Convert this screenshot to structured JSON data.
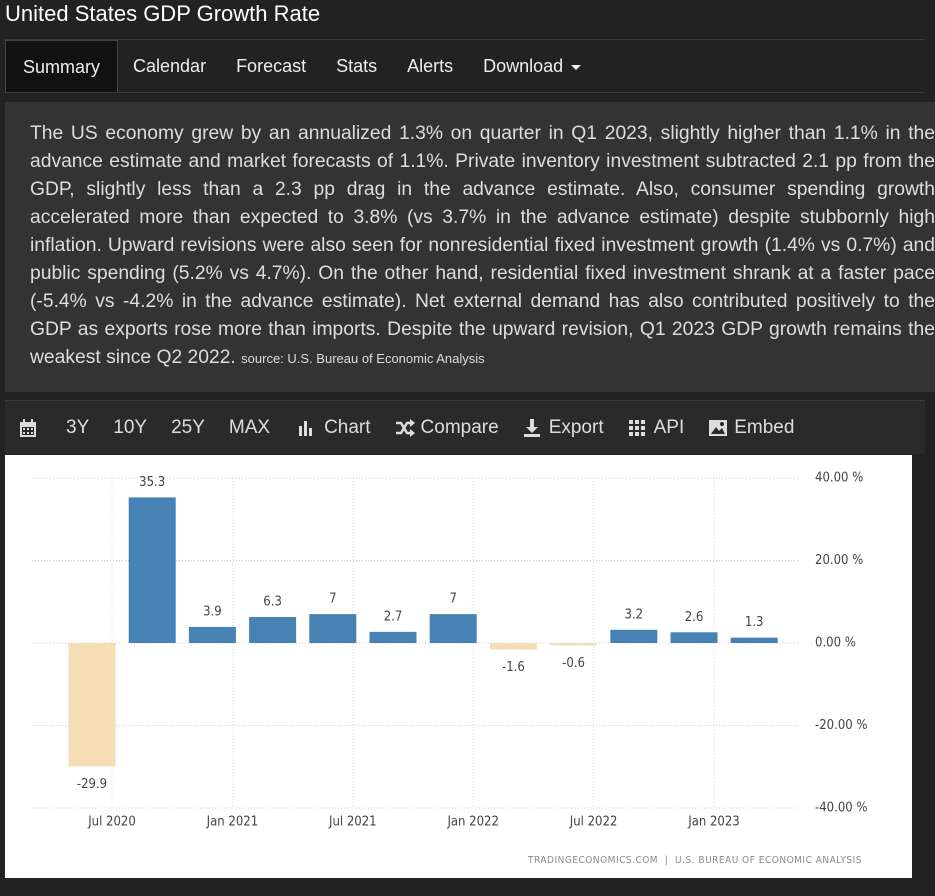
{
  "header": {
    "title": "United States GDP Growth Rate"
  },
  "nav": {
    "tabs": [
      "Summary",
      "Calendar",
      "Forecast",
      "Stats",
      "Alerts",
      "Download"
    ]
  },
  "summary": {
    "text": "The US economy grew by an annualized 1.3% on quarter in Q1 2023, slightly higher than 1.1% in the advance estimate and market forecasts of 1.1%. Private inventory investment subtracted 2.1 pp from the GDP, slightly less than a 2.3 pp drag in the advance estimate. Also, consumer spending growth accelerated more than expected to 3.8% (vs 3.7% in the advance estimate) despite stubbornly high inflation. Upward revisions were also seen for nonresidential fixed investment growth (1.4% vs 0.7%) and public spending (5.2% vs 4.7%). On the other hand, residential fixed investment shrank at a faster pace (-5.4% vs -4.2% in the advance estimate). Net external demand has also contributed positively to the GDP as exports rose more than imports. Despite the upward revision, Q1 2023 GDP growth remains the weakest since Q2 2022.",
    "source": "source: U.S. Bureau of Economic Analysis"
  },
  "toolbar": {
    "items": [
      "3Y",
      "10Y",
      "25Y",
      "MAX",
      "Chart",
      "Compare",
      "Export",
      "API",
      "Embed"
    ]
  },
  "chart_data": {
    "type": "bar",
    "categories": [
      "Jul 2020",
      null,
      "Jan 2021",
      null,
      "Jul 2021",
      null,
      "Jan 2022",
      null,
      "Jul 2022",
      null,
      "Jan 2023",
      null
    ],
    "values": [
      -29.9,
      35.3,
      3.9,
      6.3,
      7,
      2.7,
      7,
      -1.6,
      -0.6,
      3.2,
      2.6,
      1.3
    ],
    "color": "#4682b4",
    "negative_color": "#f5deb3",
    "ylim": [
      -40,
      40
    ],
    "yticks": [
      {
        "value": -40,
        "label": "-40.00 %"
      },
      {
        "value": -20,
        "label": "-20.00 %"
      },
      {
        "value": 0,
        "label": "0.00 %"
      },
      {
        "value": 20,
        "label": "20.00 %"
      },
      {
        "value": 40,
        "label": "40.00 %"
      }
    ],
    "grid": true,
    "footer": "TRADINGECONOMICS.COM  |  U.S. BUREAU OF ECONOMIC ANALYSIS"
  }
}
